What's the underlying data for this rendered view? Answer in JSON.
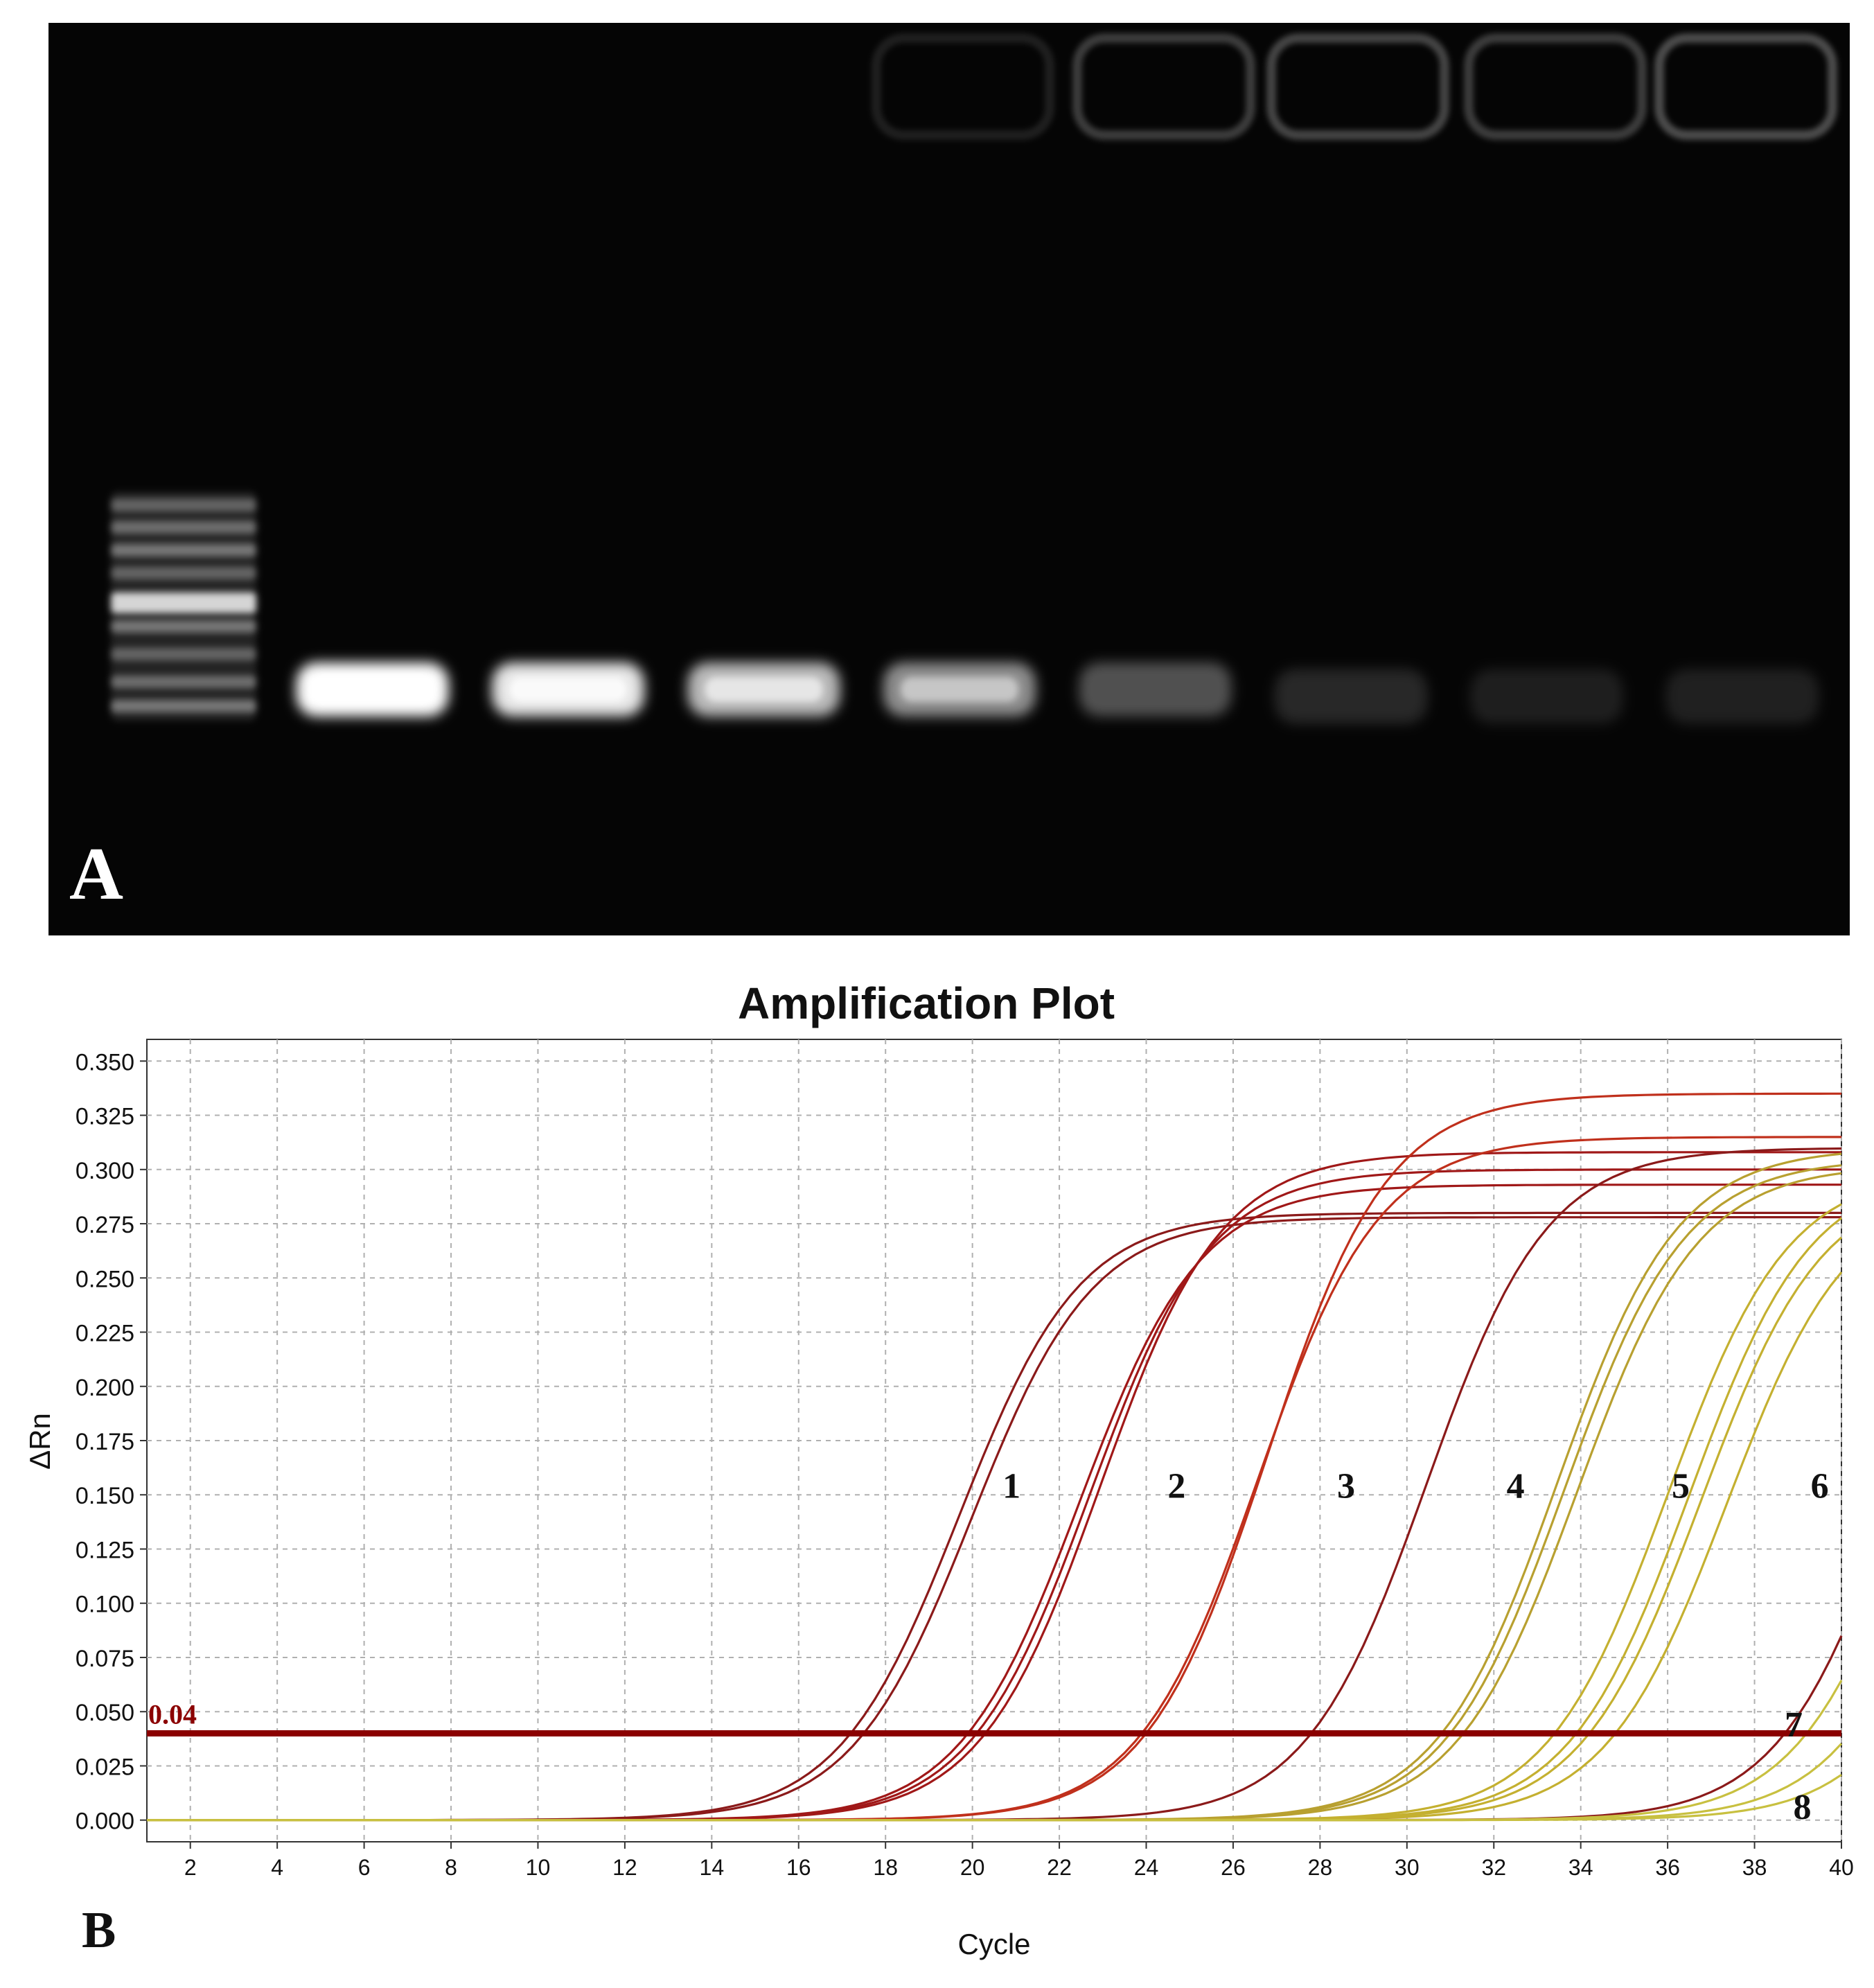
{
  "panel_a": {
    "label": "A",
    "lanes": [
      {
        "type": "ladder",
        "intensity": 0.85
      },
      {
        "type": "sample",
        "intensity": 1.0
      },
      {
        "type": "sample",
        "intensity": 0.9
      },
      {
        "type": "sample",
        "intensity": 0.72
      },
      {
        "type": "sample",
        "intensity": 0.55
      },
      {
        "type": "sample",
        "intensity": 0.3
      },
      {
        "type": "sample",
        "intensity": 0.14
      },
      {
        "type": "sample",
        "intensity": 0.1
      },
      {
        "type": "sample",
        "intensity": 0.11
      }
    ]
  },
  "panel_b": {
    "label": "B",
    "threshold_label": "0.04"
  },
  "chart_data": {
    "type": "line",
    "title": "Amplification Plot",
    "xlabel": "Cycle",
    "ylabel": "ΔRn",
    "xlim": [
      1,
      40
    ],
    "ylim": [
      -0.01,
      0.36
    ],
    "xticks": [
      2,
      4,
      6,
      8,
      10,
      12,
      14,
      16,
      18,
      20,
      22,
      24,
      26,
      28,
      30,
      32,
      34,
      36,
      38,
      40
    ],
    "yticks": [
      0.0,
      0.025,
      0.05,
      0.075,
      0.1,
      0.125,
      0.15,
      0.175,
      0.2,
      0.225,
      0.25,
      0.275,
      0.3,
      0.325,
      0.35
    ],
    "xtick_labels": [
      "2",
      "4",
      "6",
      "8",
      "10",
      "12",
      "14",
      "16",
      "18",
      "20",
      "22",
      "24",
      "26",
      "28",
      "30",
      "32",
      "34",
      "36",
      "38",
      "40"
    ],
    "ytick_labels": [
      "0.000",
      "0.025",
      "0.050",
      "0.075",
      "0.100",
      "0.125",
      "0.150",
      "0.175",
      "0.200",
      "0.225",
      "0.250",
      "0.275",
      "0.300",
      "0.325",
      "0.350"
    ],
    "grid": true,
    "threshold": 0.04,
    "threshold_color": "#8b0000",
    "groups": [
      {
        "label": "1",
        "label_x": 20.9,
        "label_y": 0.155,
        "color": "#8b1a1a",
        "curves": [
          {
            "ct": 17.2,
            "plateau": 0.28
          },
          {
            "ct": 17.5,
            "plateau": 0.278
          }
        ]
      },
      {
        "label": "2",
        "label_x": 24.7,
        "label_y": 0.155,
        "color": "#a01818",
        "curves": [
          {
            "ct": 19.9,
            "plateau": 0.293
          },
          {
            "ct": 20.1,
            "plateau": 0.3
          },
          {
            "ct": 20.3,
            "plateau": 0.308
          }
        ]
      },
      {
        "label": "3",
        "label_x": 28.6,
        "label_y": 0.155,
        "color": "#c0301c",
        "curves": [
          {
            "ct": 23.9,
            "plateau": 0.315
          },
          {
            "ct": 24.0,
            "plateau": 0.335
          }
        ]
      },
      {
        "label": "4",
        "label_x": 32.5,
        "label_y": 0.155,
        "color": "#8b1a1a",
        "curves": [
          {
            "ct": 27.8,
            "plateau": 0.31
          }
        ]
      },
      {
        "label": "5",
        "label_x": 36.3,
        "label_y": 0.155,
        "color": "#b8a030",
        "curves": [
          {
            "ct": 30.8,
            "plateau": 0.31
          },
          {
            "ct": 31.0,
            "plateau": 0.305
          },
          {
            "ct": 31.3,
            "plateau": 0.302
          }
        ]
      },
      {
        "label": "6",
        "label_x": 39.5,
        "label_y": 0.155,
        "color": "#c4b030",
        "curves": [
          {
            "ct": 33.4,
            "plateau": 0.3
          },
          {
            "ct": 33.9,
            "plateau": 0.3
          },
          {
            "ct": 34.2,
            "plateau": 0.295
          },
          {
            "ct": 34.8,
            "plateau": 0.29
          }
        ]
      },
      {
        "label": "7",
        "label_x": 38.9,
        "label_y": 0.045,
        "color": "#8b1a1a",
        "curves": [
          {
            "ct": 38.7,
            "plateau": 0.31
          }
        ]
      },
      {
        "label": "8",
        "label_x": 39.1,
        "label_y": 0.007,
        "color": "#c8c040",
        "curves": [
          {
            "ct": 39.2,
            "plateau": 0.3
          },
          {
            "ct": 40.2,
            "plateau": 0.3
          },
          {
            "ct": 41.0,
            "plateau": 0.3
          }
        ]
      }
    ]
  }
}
